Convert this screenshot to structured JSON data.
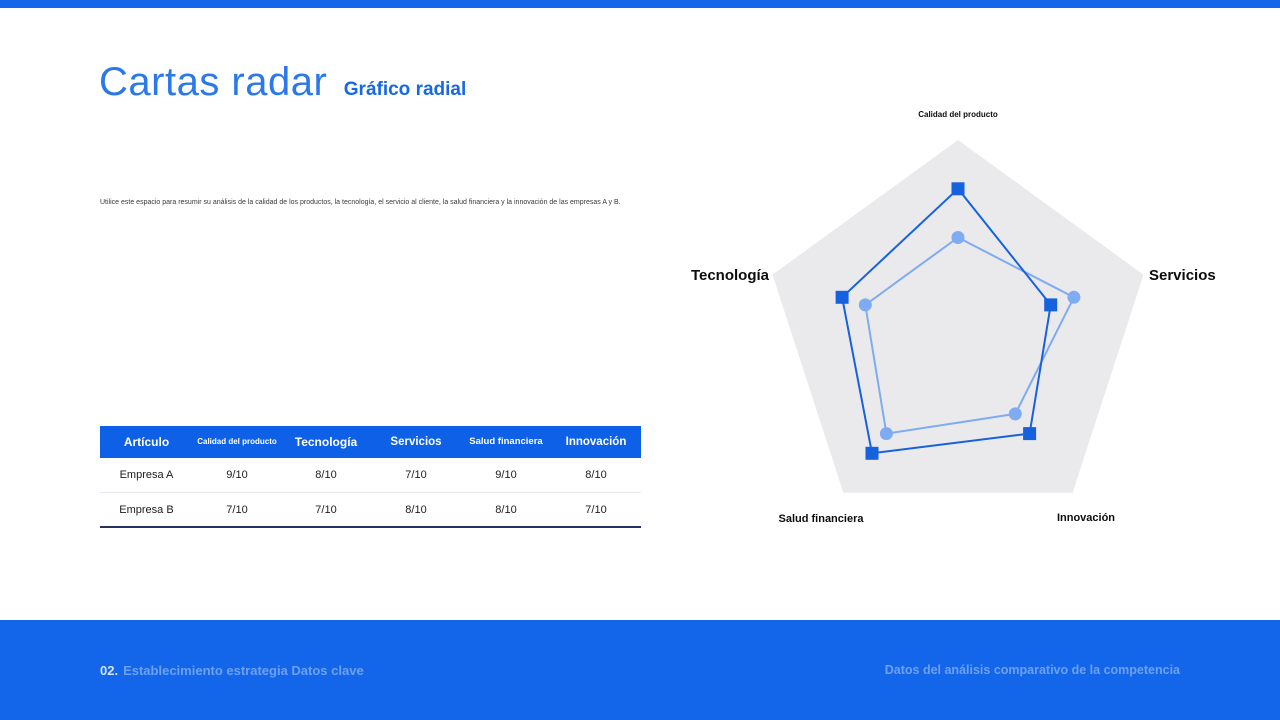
{
  "slide": {
    "title": "Cartas radar",
    "subtitle": "Gráfico radial",
    "description": "Utilice este espacio para resumir su análisis de la calidad de los productos, la tecnología, el servicio al cliente, la salud financiera y la innovación de las empresas A y B.",
    "footer": {
      "left_number": "02.",
      "left_text": "Establecimiento estrategia Datos clave",
      "right_text": "Datos del análisis comparativo de la competencia"
    }
  },
  "colors": {
    "accent": "#1467e8",
    "table_header": "#0e60e6",
    "footer_bar": "#1366e9",
    "pentagon_fill": "#eaeaec",
    "series_a": "#1661de",
    "series_b": "#7fabf2"
  },
  "table": {
    "columns": [
      "Artículo",
      "Calidad del producto",
      "Tecnología",
      "Servicios",
      "Salud financiera",
      "Innovación"
    ],
    "rows": [
      {
        "label": "Empresa A",
        "values": [
          "9/10",
          "8/10",
          "7/10",
          "9/10",
          "8/10"
        ]
      },
      {
        "label": "Empresa B",
        "values": [
          "7/10",
          "7/10",
          "8/10",
          "8/10",
          "7/10"
        ]
      }
    ]
  },
  "chart_data": {
    "type": "radar",
    "categories": [
      "Calidad del producto",
      "Servicios",
      "Innovación",
      "Salud financiera",
      "Tecnología"
    ],
    "scale_max": 10,
    "grid": false,
    "legend": "none",
    "series": [
      {
        "name": "Empresa A",
        "marker": "square",
        "color": "#1661de",
        "values": [
          9,
          7,
          8,
          9,
          8
        ]
      },
      {
        "name": "Empresa B",
        "marker": "circle",
        "color": "#7fabf2",
        "values": [
          7,
          8,
          7,
          8,
          7
        ]
      }
    ]
  }
}
